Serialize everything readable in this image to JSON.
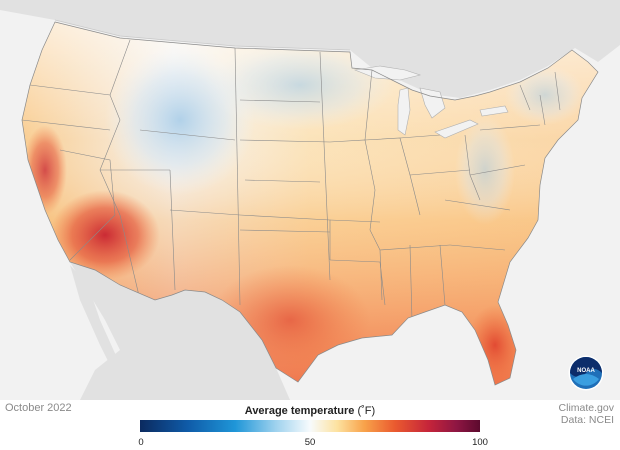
{
  "map": {
    "type": "choropleth",
    "region": "contiguous United States",
    "variable": "Average temperature",
    "colors": {
      "background": "#f2f2f2",
      "land_outside": "#e1e1e1",
      "water_lakes": "#f2f2f2",
      "state_border": "#8a8a8a"
    }
  },
  "footer": {
    "date": "October 2022",
    "credit_line1": "Climate.gov",
    "credit_line2": "Data: NCEI"
  },
  "legend": {
    "title": "Average temperature",
    "unit": "(˚F)",
    "min": 0,
    "mid": 50,
    "max": 100,
    "tick_labels": [
      "0",
      "50",
      "100"
    ],
    "colormap": [
      "#0b2a5f",
      "#0f5ba8",
      "#1f96d8",
      "#9fd2ee",
      "#f7fbfd",
      "#fde2a0",
      "#f8a24a",
      "#ea5a2f",
      "#c5243a",
      "#8f1643",
      "#5c0a2e"
    ]
  },
  "logo": {
    "text": "NOAA",
    "icon": "noaa-logo-icon"
  }
}
